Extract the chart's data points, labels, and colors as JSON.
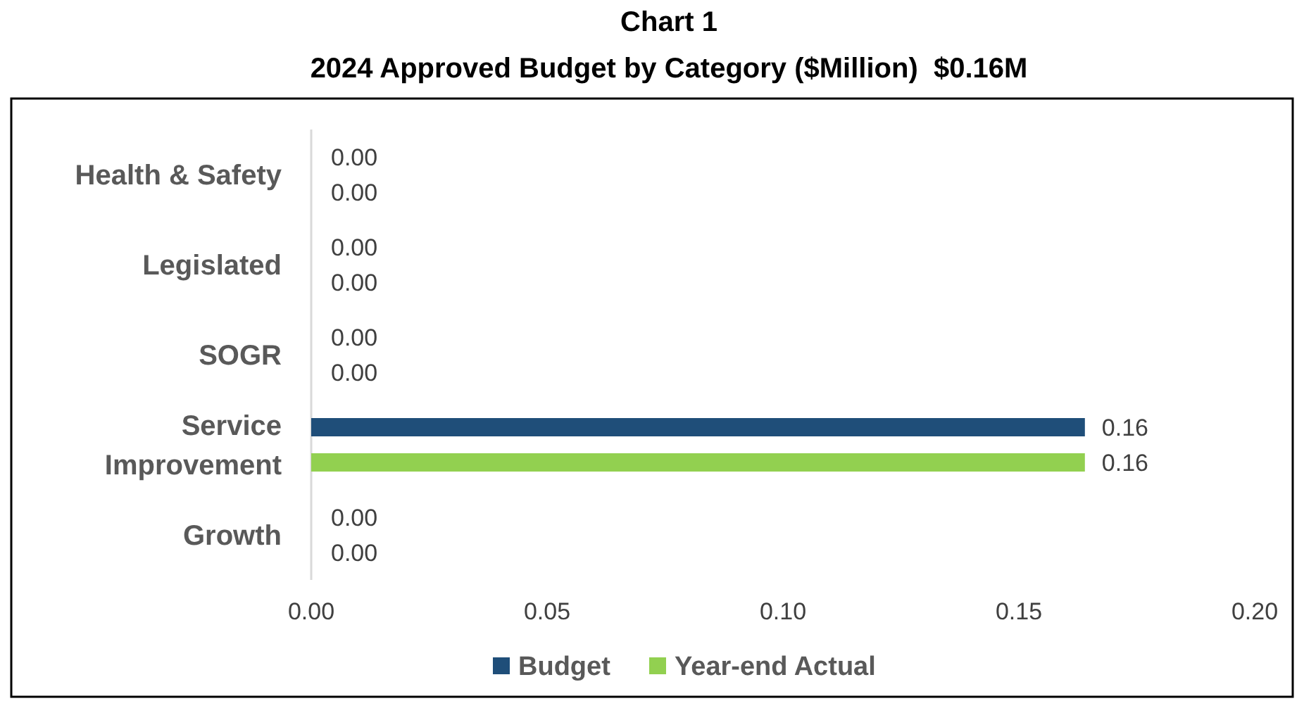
{
  "chart_data": {
    "type": "bar",
    "orientation": "horizontal",
    "title": "Chart 1",
    "subtitle": "2024 Approved Budget by Category ($Million)  $0.16M",
    "categories": [
      "Health & Safety",
      "Legislated",
      "SOGR",
      "Service Improvement",
      "Growth"
    ],
    "series": [
      {
        "name": "Budget",
        "color": "#1f4e79",
        "values": [
          0,
          0,
          0,
          0.164,
          0
        ],
        "value_labels": [
          "0.00",
          "0.00",
          "0.00",
          "0.16",
          "0.00"
        ]
      },
      {
        "name": "Year-end Actual",
        "color": "#92d050",
        "values": [
          0,
          0,
          0,
          0.164,
          0
        ],
        "value_labels": [
          "0.00",
          "0.00",
          "0.00",
          "0.16",
          "0.00"
        ]
      }
    ],
    "xlim": [
      0,
      0.2
    ],
    "xticks": [
      {
        "value": 0,
        "label": "0.00"
      },
      {
        "value": 0.05,
        "label": "0.05"
      },
      {
        "value": 0.1,
        "label": "0.10"
      },
      {
        "value": 0.15,
        "label": "0.15"
      },
      {
        "value": 0.2,
        "label": "0.20"
      }
    ],
    "legend": "bottom",
    "grid": false
  }
}
